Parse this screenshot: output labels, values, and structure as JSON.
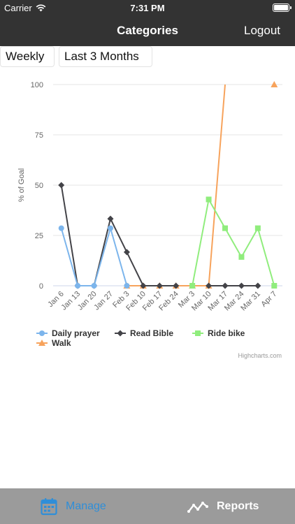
{
  "status_bar": {
    "carrier": "Carrier",
    "time": "7:31 PM"
  },
  "nav": {
    "title": "Categories",
    "logout_label": "Logout"
  },
  "filters": {
    "period": "Weekly",
    "range": "Last 3 Months"
  },
  "credit": "Highcharts.com",
  "tabs": [
    {
      "label": "Manage",
      "icon": "calendar-icon",
      "active": true
    },
    {
      "label": "Reports",
      "icon": "trend-line-icon",
      "active": false
    }
  ],
  "colors": {
    "bars": "#333333",
    "tabbar": "#9b9b9b",
    "active_tab": "#2f8ed8"
  },
  "chart_data": {
    "type": "line",
    "ylabel": "% of Goal",
    "xlabel": "",
    "ylim": [
      0,
      100
    ],
    "yticks": [
      0,
      25,
      50,
      75,
      100
    ],
    "categories": [
      "Jan 6",
      "Jan 13",
      "Jan 20",
      "Jan 27",
      "Feb 3",
      "Feb 10",
      "Feb 17",
      "Feb 24",
      "Mar 3",
      "Mar 10",
      "Mar 17",
      "Mar 24",
      "Mar 31",
      "Apr 7"
    ],
    "legend_position": "bottom-left",
    "grid": true,
    "series": [
      {
        "name": "Daily prayer",
        "color": "#7cb5ec",
        "marker": "circle",
        "values": [
          28.6,
          0,
          0,
          28.6,
          0,
          null,
          null,
          null,
          null,
          null,
          null,
          null,
          null,
          null
        ]
      },
      {
        "name": "Read Bible",
        "color": "#434348",
        "marker": "diamond",
        "values": [
          50,
          0,
          0,
          33.3,
          16.7,
          0,
          0,
          0,
          null,
          0,
          0,
          0,
          0,
          null
        ]
      },
      {
        "name": "Ride bike",
        "color": "#90ed7d",
        "marker": "square",
        "values": [
          null,
          null,
          null,
          null,
          null,
          null,
          null,
          null,
          0,
          42.9,
          28.6,
          14.3,
          28.6,
          0
        ]
      },
      {
        "name": "Walk",
        "color": "#f7a35c",
        "marker": "triangle",
        "values": [
          null,
          null,
          null,
          null,
          0,
          0,
          0,
          0,
          0,
          0,
          100,
          null,
          null,
          100
        ]
      }
    ]
  }
}
